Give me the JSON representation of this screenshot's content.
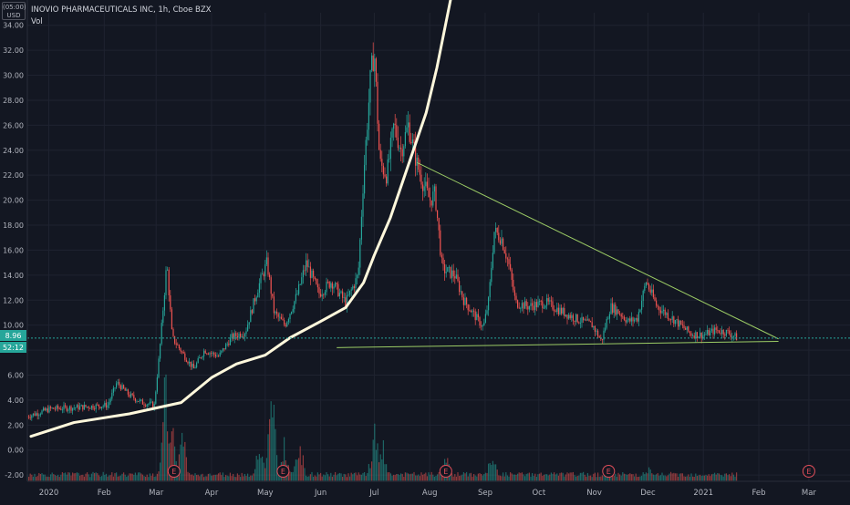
{
  "header": {
    "symbol_line": "INOVIO PHARMACEUTICALS INC, 1h, Cboe BZX",
    "indicator": "Vol",
    "currency_top": "(05:00)",
    "currency": "USD"
  },
  "price_badges": {
    "last_price": "8.96",
    "countdown": "52:12"
  },
  "colors": {
    "background": "#131722",
    "grid": "#1f2330",
    "axis_text": "#b2b5be",
    "up": "#26a69a",
    "down": "#ef5350",
    "drawing_curve": "#fff8dc",
    "trendline": "#9ccc65",
    "badge": "#26a69a",
    "earnings_marker": "#e04e5a"
  },
  "chart_data": {
    "type": "candlestick",
    "title": "INOVIO PHARMACEUTICALS INC, 1h, Cboe BZX",
    "interval": "1h",
    "currency": "USD",
    "ylim": [
      -2.5,
      35
    ],
    "y_ticks": [
      -2.0,
      0.0,
      2.0,
      4.0,
      6.0,
      8.0,
      10.0,
      12.0,
      14.0,
      16.0,
      18.0,
      20.0,
      22.0,
      24.0,
      26.0,
      28.0,
      30.0,
      32.0,
      34.0
    ],
    "x_ticks": [
      "2020",
      "Feb",
      "Mar",
      "Apr",
      "May",
      "Jun",
      "Jul",
      "Aug",
      "Sep",
      "Oct",
      "Nov",
      "Dec",
      "2021",
      "Feb",
      "Mar"
    ],
    "x_tick_dates": [
      "2020-01-01",
      "2020-02-01",
      "2020-03-01",
      "2020-04-01",
      "2020-05-01",
      "2020-06-01",
      "2020-07-01",
      "2020-08-01",
      "2020-09-01",
      "2020-10-01",
      "2020-11-01",
      "2020-12-01",
      "2021-01-01",
      "2021-02-01",
      "2021-03-01"
    ],
    "xlim": [
      "2019-12-20",
      "2021-03-24"
    ],
    "price_path": [
      [
        "2019-12-20",
        2.7
      ],
      [
        "2020-01-02",
        3.3
      ],
      [
        "2020-01-15",
        3.4
      ],
      [
        "2020-01-25",
        3.5
      ],
      [
        "2020-02-03",
        3.6
      ],
      [
        "2020-02-08",
        5.4
      ],
      [
        "2020-02-15",
        4.4
      ],
      [
        "2020-02-22",
        3.8
      ],
      [
        "2020-02-29",
        3.6
      ],
      [
        "2020-03-03",
        8.0
      ],
      [
        "2020-03-07",
        15.0
      ],
      [
        "2020-03-10",
        9.0
      ],
      [
        "2020-03-17",
        7.5
      ],
      [
        "2020-03-22",
        6.5
      ],
      [
        "2020-03-28",
        8.0
      ],
      [
        "2020-04-05",
        7.5
      ],
      [
        "2020-04-12",
        9.0
      ],
      [
        "2020-04-20",
        9.5
      ],
      [
        "2020-04-27",
        13.0
      ],
      [
        "2020-05-02",
        15.0
      ],
      [
        "2020-05-06",
        11.0
      ],
      [
        "2020-05-12",
        10.0
      ],
      [
        "2020-05-19",
        12.5
      ],
      [
        "2020-05-24",
        15.0
      ],
      [
        "2020-05-31",
        12.5
      ],
      [
        "2020-06-07",
        13.5
      ],
      [
        "2020-06-15",
        11.8
      ],
      [
        "2020-06-22",
        14.0
      ],
      [
        "2020-06-25",
        22.0
      ],
      [
        "2020-06-29",
        30.0
      ],
      [
        "2020-07-01",
        32.0
      ],
      [
        "2020-07-04",
        23.0
      ],
      [
        "2020-07-08",
        22.0
      ],
      [
        "2020-07-12",
        26.0
      ],
      [
        "2020-07-16",
        24.0
      ],
      [
        "2020-07-20",
        26.0
      ],
      [
        "2020-07-25",
        22.8
      ],
      [
        "2020-07-28",
        21.5
      ],
      [
        "2020-08-01",
        20.0
      ],
      [
        "2020-08-04",
        20.5
      ],
      [
        "2020-08-08",
        14.5
      ],
      [
        "2020-08-15",
        14.0
      ],
      [
        "2020-08-20",
        12.0
      ],
      [
        "2020-08-25",
        11.0
      ],
      [
        "2020-08-31",
        9.8
      ],
      [
        "2020-09-03",
        12.0
      ],
      [
        "2020-09-06",
        17.5
      ],
      [
        "2020-09-10",
        17.0
      ],
      [
        "2020-09-14",
        15.0
      ],
      [
        "2020-09-18",
        11.8
      ],
      [
        "2020-09-25",
        11.5
      ],
      [
        "2020-10-05",
        11.8
      ],
      [
        "2020-10-15",
        11.0
      ],
      [
        "2020-10-25",
        10.3
      ],
      [
        "2020-10-31",
        10.0
      ],
      [
        "2020-11-05",
        8.7
      ],
      [
        "2020-11-10",
        11.5
      ],
      [
        "2020-11-15",
        11.0
      ],
      [
        "2020-11-20",
        10.3
      ],
      [
        "2020-11-25",
        10.5
      ],
      [
        "2020-11-30",
        13.5
      ],
      [
        "2020-12-06",
        11.5
      ],
      [
        "2020-12-15",
        10.5
      ],
      [
        "2020-12-25",
        9.3
      ],
      [
        "2021-01-01",
        9.2
      ],
      [
        "2021-01-08",
        9.6
      ],
      [
        "2021-01-15",
        9.4
      ],
      [
        "2021-01-20",
        8.96
      ]
    ],
    "drawings": {
      "curve": [
        [
          "2019-12-22",
          1.1
        ],
        [
          "2020-01-15",
          2.2
        ],
        [
          "2020-02-15",
          2.9
        ],
        [
          "2020-03-15",
          3.8
        ],
        [
          "2020-04-01",
          5.8
        ],
        [
          "2020-04-15",
          6.9
        ],
        [
          "2020-05-01",
          7.6
        ],
        [
          "2020-05-15",
          9.0
        ],
        [
          "2020-06-01",
          10.3
        ],
        [
          "2020-06-15",
          11.4
        ],
        [
          "2020-06-25",
          13.4
        ],
        [
          "2020-07-01",
          15.6
        ],
        [
          "2020-07-10",
          18.6
        ],
        [
          "2020-07-20",
          22.8
        ],
        [
          "2020-07-30",
          27.0
        ],
        [
          "2020-08-05",
          30.6
        ],
        [
          "2020-08-13",
          36.3
        ]
      ],
      "resistance_line": [
        [
          "2020-07-25",
          23.0
        ],
        [
          "2021-02-12",
          8.9
        ]
      ],
      "support_line": [
        [
          "2020-06-10",
          8.2
        ],
        [
          "2021-02-12",
          8.7
        ]
      ]
    },
    "volume_profile": {
      "base_value": -2.45,
      "max_height_value": 7.5,
      "spikes": [
        [
          "2020-03-06",
          1.0
        ],
        [
          "2020-03-10",
          0.6
        ],
        [
          "2020-03-16",
          0.5
        ],
        [
          "2020-04-28",
          0.45
        ],
        [
          "2020-05-05",
          0.9
        ],
        [
          "2020-05-12",
          0.4
        ],
        [
          "2020-05-20",
          0.45
        ],
        [
          "2020-07-01",
          0.55
        ],
        [
          "2020-07-06",
          0.35
        ],
        [
          "2020-08-10",
          0.25
        ],
        [
          "2020-09-05",
          0.3
        ],
        [
          "2020-11-10",
          0.2
        ],
        [
          "2020-12-01",
          0.15
        ]
      ]
    },
    "earnings_markers": [
      "2020-03-11",
      "2020-05-11",
      "2020-08-10",
      "2020-11-09",
      "2021-03-01"
    ],
    "earnings_label": "E",
    "last_price": 8.96,
    "grid": true
  }
}
